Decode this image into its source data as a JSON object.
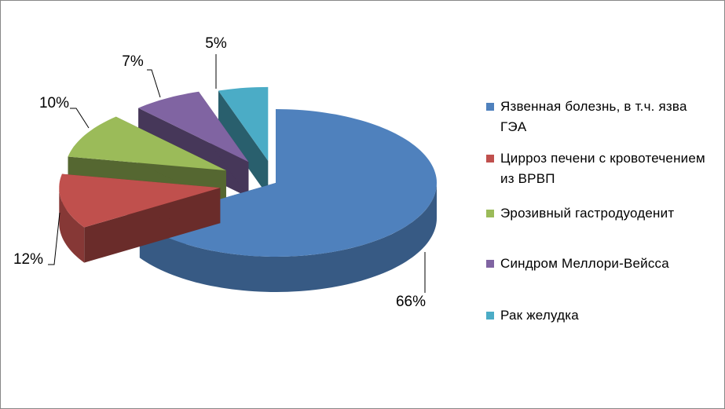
{
  "chart_data": {
    "type": "pie",
    "categories": [
      "Язвенная болезнь, в т.ч. язва ГЭА",
      "Цирроз печени с кровотечением из ВРВП",
      "Эрозивный гастродуоденит",
      "Синдром Меллори-Вейсса",
      "Рак желудка"
    ],
    "values": [
      66,
      12,
      10,
      7,
      5
    ],
    "value_labels": [
      "66%",
      "12%",
      "10%",
      "7%",
      "5%"
    ],
    "colors": [
      "#4f81bd",
      "#c0504d",
      "#9bbb59",
      "#8064a2",
      "#4bacc6"
    ],
    "legend": "right"
  }
}
